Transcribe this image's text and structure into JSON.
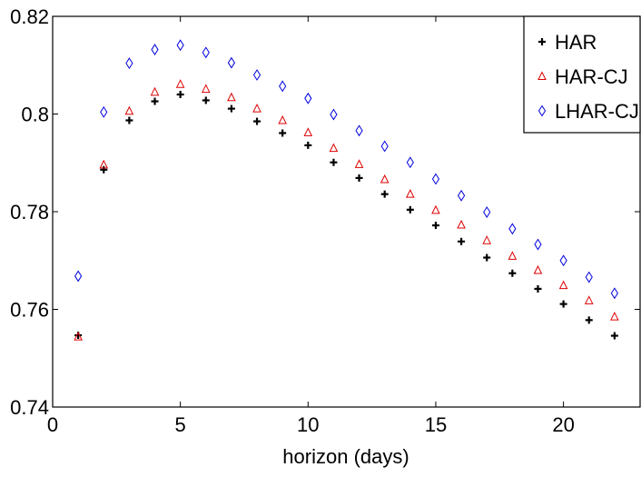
{
  "chart_data": {
    "type": "scatter",
    "title": "",
    "xlabel": "horizon (days)",
    "ylabel": "",
    "xlim": [
      0,
      23
    ],
    "ylim": [
      0.74,
      0.82
    ],
    "xticks": [
      0,
      5,
      10,
      15,
      20
    ],
    "yticks": [
      0.74,
      0.76,
      0.78,
      0.8,
      0.82
    ],
    "xtick_labels": [
      "0",
      "5",
      "10",
      "15",
      "20"
    ],
    "ytick_labels": [
      "0.74",
      "0.76",
      "0.78",
      "0.8",
      "0.82"
    ],
    "grid": false,
    "legend_position": "top-right",
    "x": [
      1,
      2,
      3,
      4,
      5,
      6,
      7,
      8,
      9,
      10,
      11,
      12,
      13,
      14,
      15,
      16,
      17,
      18,
      19,
      20,
      21,
      22
    ],
    "series": [
      {
        "name": "HAR",
        "marker": "plus",
        "color": "#000000",
        "values": [
          0.7547,
          0.7886,
          0.7987,
          0.8026,
          0.804,
          0.8028,
          0.8011,
          0.7985,
          0.7961,
          0.7936,
          0.7901,
          0.7869,
          0.7836,
          0.7804,
          0.7772,
          0.7739,
          0.7706,
          0.7674,
          0.7642,
          0.7611,
          0.7578,
          0.7546
        ]
      },
      {
        "name": "HAR-CJ",
        "marker": "triangle",
        "color": "#dd0000",
        "values": [
          0.7544,
          0.7896,
          0.8006,
          0.8045,
          0.8061,
          0.8051,
          0.8034,
          0.8011,
          0.7987,
          0.7962,
          0.793,
          0.7897,
          0.7866,
          0.7836,
          0.7803,
          0.7773,
          0.7741,
          0.7709,
          0.768,
          0.7649,
          0.7618,
          0.7585
        ]
      },
      {
        "name": "LHAR-CJ",
        "marker": "diamond",
        "color": "#0000dd",
        "values": [
          0.7668,
          0.8004,
          0.8104,
          0.8132,
          0.8141,
          0.8126,
          0.8105,
          0.808,
          0.8057,
          0.8032,
          0.7999,
          0.7966,
          0.7934,
          0.7901,
          0.7867,
          0.7833,
          0.7799,
          0.7765,
          0.7733,
          0.77,
          0.7666,
          0.7633
        ]
      }
    ]
  }
}
